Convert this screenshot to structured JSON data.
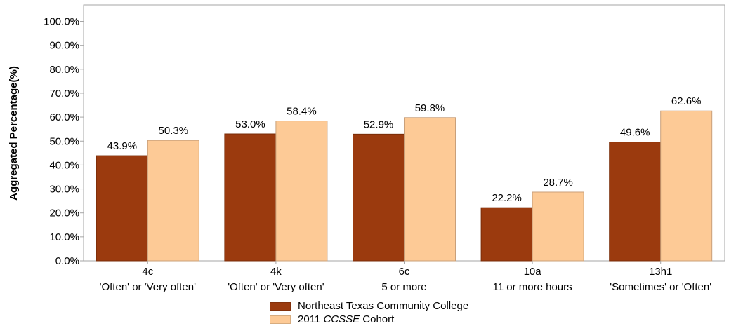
{
  "chart_data": {
    "type": "bar",
    "title": "",
    "xlabel": "",
    "ylabel": "Aggregated Percentage(%)",
    "ylim": [
      0,
      100
    ],
    "yticks": [
      "0.0%",
      "10.0%",
      "20.0%",
      "30.0%",
      "40.0%",
      "50.0%",
      "60.0%",
      "70.0%",
      "80.0%",
      "90.0%",
      "100.0%"
    ],
    "grid": false,
    "legend_position": "bottom",
    "categories": [
      {
        "code": "4c",
        "desc": "'Often' or 'Very often'"
      },
      {
        "code": "4k",
        "desc": "'Often' or 'Very often'"
      },
      {
        "code": "6c",
        "desc": "5 or more"
      },
      {
        "code": "10a",
        "desc": "11 or more hours"
      },
      {
        "code": "13h1",
        "desc": "'Sometimes' or 'Often'"
      }
    ],
    "series": [
      {
        "name": "Northeast Texas Community College",
        "color": "#9B3A0E",
        "values": [
          43.9,
          53.0,
          52.9,
          22.2,
          49.6
        ],
        "labels": [
          "43.9%",
          "53.0%",
          "52.9%",
          "22.2%",
          "49.6%"
        ]
      },
      {
        "name": "2011 CCSSE Cohort",
        "name_prefix": "2011 ",
        "name_italic": "CCSSE",
        "name_suffix": " Cohort",
        "color": "#FDCA96",
        "values": [
          50.3,
          58.4,
          59.8,
          28.7,
          62.6
        ],
        "labels": [
          "50.3%",
          "58.4%",
          "59.8%",
          "28.7%",
          "62.6%"
        ]
      }
    ]
  }
}
